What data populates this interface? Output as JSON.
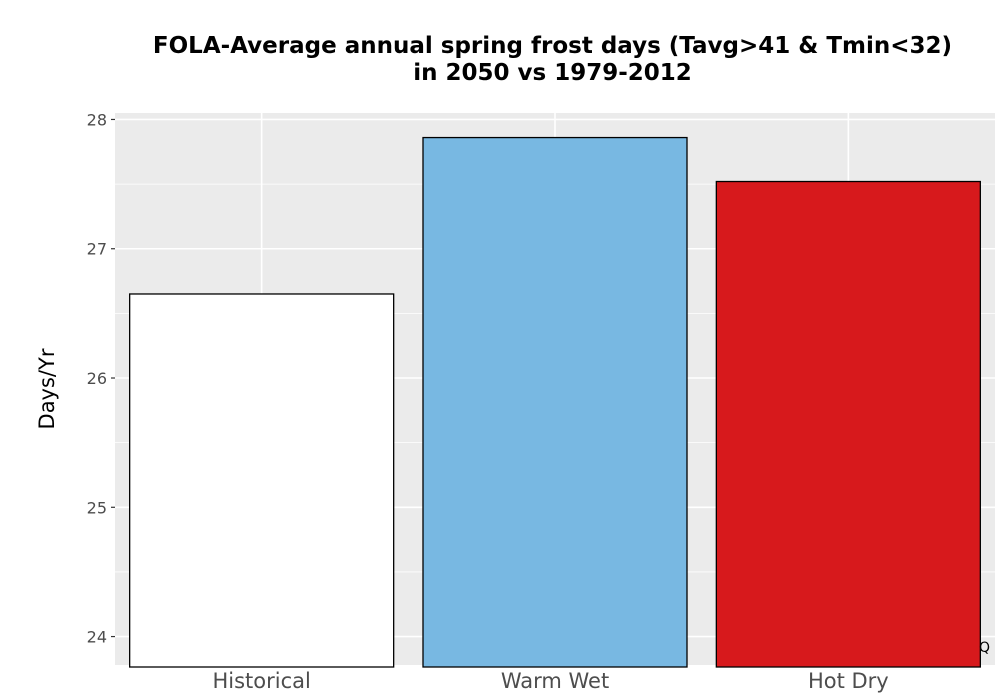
{
  "chart_data": {
    "type": "bar",
    "title_line1": "FOLA-Average annual spring frost days (Tavg>41 & Tmin<32)",
    "title_line2": "in 2050 vs 1979-2012",
    "xlabel": "",
    "ylabel": "Days/Yr",
    "categories": [
      "Historical",
      "Warm Wet",
      "Hot Dry"
    ],
    "values": [
      26.65,
      27.86,
      27.52
    ],
    "colors": [
      "#ffffff",
      "#78b8e2",
      "#d7191c"
    ],
    "bar_outline": "#000000",
    "ylim": [
      23.78,
      28.05
    ],
    "yticks": [
      24,
      25,
      26,
      27,
      28
    ],
    "ytick_labels": [
      "24",
      "25",
      "26",
      "27",
      "28"
    ],
    "grid": true,
    "panel_background": "#ebebeb",
    "legend": "none",
    "corner_mark": "Q"
  }
}
